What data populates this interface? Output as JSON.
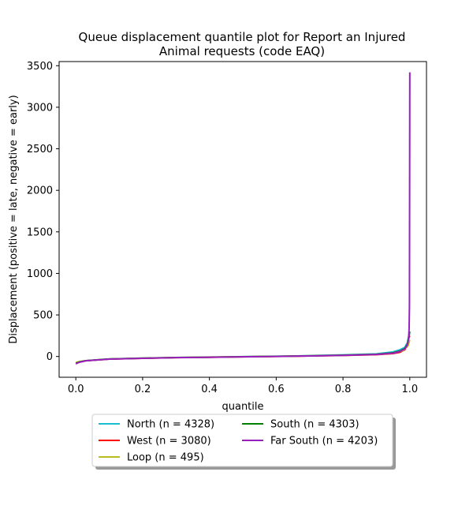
{
  "chart_data": {
    "type": "line",
    "title_lines": [
      "Queue displacement quantile plot for Report an Injured",
      "Animal  requests (code EAQ)"
    ],
    "xlabel": "quantile",
    "ylabel": "Displacement (positive = late, negative = early)",
    "xlim": [
      -0.05,
      1.05
    ],
    "ylim": [
      -250,
      3550
    ],
    "x_ticks": [
      0.0,
      0.2,
      0.4,
      0.6,
      0.8,
      1.0
    ],
    "x_tick_labels": [
      "0.0",
      "0.2",
      "0.4",
      "0.6",
      "0.8",
      "1.0"
    ],
    "y_ticks": [
      0,
      500,
      1000,
      1500,
      2000,
      2500,
      3000,
      3500
    ],
    "y_tick_labels": [
      "0",
      "500",
      "1000",
      "1500",
      "2000",
      "2500",
      "3000",
      "3500"
    ],
    "grid": false,
    "legend_position": "below plot, two columns",
    "series": [
      {
        "name": "North (n = 4328)",
        "color": "#17becf",
        "points": [
          [
            0.0,
            -80
          ],
          [
            0.01,
            -65
          ],
          [
            0.03,
            -50
          ],
          [
            0.1,
            -30
          ],
          [
            0.2,
            -20
          ],
          [
            0.3,
            -12
          ],
          [
            0.4,
            -8
          ],
          [
            0.5,
            -2
          ],
          [
            0.6,
            3
          ],
          [
            0.7,
            10
          ],
          [
            0.8,
            20
          ],
          [
            0.9,
            32
          ],
          [
            0.95,
            55
          ],
          [
            0.97,
            80
          ],
          [
            0.985,
            110
          ],
          [
            0.993,
            170
          ],
          [
            0.997,
            250
          ],
          [
            1.0,
            280
          ]
        ]
      },
      {
        "name": "West (n = 3080)",
        "color": "#ff0000",
        "points": [
          [
            0.0,
            -85
          ],
          [
            0.01,
            -70
          ],
          [
            0.03,
            -52
          ],
          [
            0.1,
            -32
          ],
          [
            0.2,
            -22
          ],
          [
            0.3,
            -14
          ],
          [
            0.4,
            -10
          ],
          [
            0.5,
            -4
          ],
          [
            0.6,
            0
          ],
          [
            0.7,
            6
          ],
          [
            0.8,
            12
          ],
          [
            0.9,
            22
          ],
          [
            0.95,
            35
          ],
          [
            0.97,
            50
          ],
          [
            0.985,
            80
          ],
          [
            0.993,
            140
          ],
          [
            0.997,
            220
          ],
          [
            1.0,
            250
          ]
        ]
      },
      {
        "name": "Loop (n = 495)",
        "color": "#bcbd22",
        "points": [
          [
            0.0,
            -70
          ],
          [
            0.02,
            -55
          ],
          [
            0.1,
            -30
          ],
          [
            0.2,
            -20
          ],
          [
            0.3,
            -12
          ],
          [
            0.4,
            -7
          ],
          [
            0.5,
            -3
          ],
          [
            0.6,
            2
          ],
          [
            0.7,
            8
          ],
          [
            0.8,
            15
          ],
          [
            0.9,
            25
          ],
          [
            0.95,
            40
          ],
          [
            0.98,
            70
          ],
          [
            0.995,
            130
          ],
          [
            1.0,
            200
          ]
        ]
      },
      {
        "name": "South (n = 4303)",
        "color": "#008000",
        "points": [
          [
            0.0,
            -82
          ],
          [
            0.01,
            -66
          ],
          [
            0.03,
            -50
          ],
          [
            0.1,
            -30
          ],
          [
            0.2,
            -21
          ],
          [
            0.3,
            -13
          ],
          [
            0.4,
            -9
          ],
          [
            0.5,
            -3
          ],
          [
            0.6,
            2
          ],
          [
            0.7,
            8
          ],
          [
            0.8,
            16
          ],
          [
            0.9,
            27
          ],
          [
            0.95,
            45
          ],
          [
            0.97,
            65
          ],
          [
            0.985,
            95
          ],
          [
            0.993,
            150
          ],
          [
            0.997,
            240
          ],
          [
            1.0,
            300
          ]
        ]
      },
      {
        "name": "Far South (n = 4203)",
        "color": "#9b1fbf",
        "points": [
          [
            0.0,
            -88
          ],
          [
            0.01,
            -70
          ],
          [
            0.03,
            -52
          ],
          [
            0.1,
            -32
          ],
          [
            0.2,
            -22
          ],
          [
            0.3,
            -14
          ],
          [
            0.4,
            -9
          ],
          [
            0.5,
            -4
          ],
          [
            0.6,
            1
          ],
          [
            0.7,
            7
          ],
          [
            0.8,
            14
          ],
          [
            0.9,
            24
          ],
          [
            0.95,
            40
          ],
          [
            0.97,
            60
          ],
          [
            0.985,
            90
          ],
          [
            0.993,
            140
          ],
          [
            0.996,
            200
          ],
          [
            0.998,
            330
          ],
          [
            0.999,
            600
          ],
          [
            1.0,
            3420
          ]
        ]
      }
    ]
  }
}
